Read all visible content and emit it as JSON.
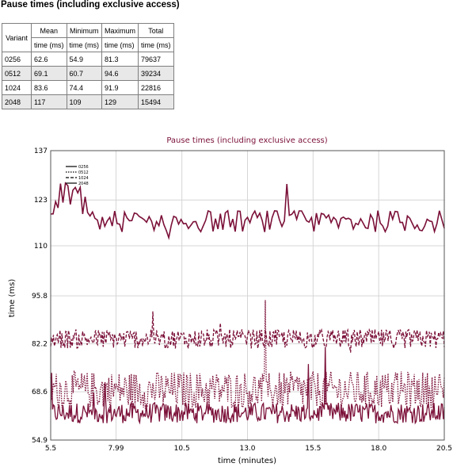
{
  "page": {
    "title": "Pause times (including exclusive access)"
  },
  "table": {
    "variant_header": "Variant",
    "columns": [
      {
        "name": "Mean",
        "unit": "time (ms)"
      },
      {
        "name": "Minimum",
        "unit": "time (ms)"
      },
      {
        "name": "Maximum",
        "unit": "time (ms)"
      },
      {
        "name": "Total",
        "unit": "time (ms)"
      }
    ],
    "rows": [
      {
        "variant": "0256",
        "mean": "62.6",
        "min": "54.9",
        "max": "81.3",
        "total": "79637"
      },
      {
        "variant": "0512",
        "mean": "69.1",
        "min": "60.7",
        "max": "94.6",
        "total": "39234"
      },
      {
        "variant": "1024",
        "mean": "83.6",
        "min": "74.4",
        "max": "91.9",
        "total": "22816"
      },
      {
        "variant": "2048",
        "mean": "117",
        "min": "109",
        "max": "129",
        "total": "15494"
      }
    ]
  },
  "chart_data": {
    "type": "line",
    "title": "Pause times (including exclusive access)",
    "xlabel": "time (minutes)",
    "ylabel": "time (ms)",
    "xlim": [
      5.5,
      20.5
    ],
    "ylim": [
      54.9,
      137
    ],
    "x_ticks": [
      "5.5",
      "7.99",
      "10.5",
      "13.0",
      "15.5",
      "18.0",
      "20.5"
    ],
    "y_ticks": [
      "54.9",
      "68.6",
      "82.2",
      "95.8",
      "110",
      "123",
      "137"
    ],
    "grid": true,
    "legend_position": "top-left",
    "line_color": "#7b1038",
    "series": [
      {
        "name": "0256",
        "style": "solid",
        "mean": 62.6,
        "min": 54.9,
        "max": 81.3
      },
      {
        "name": "0512",
        "style": "dotted",
        "mean": 69.1,
        "min": 60.7,
        "max": 94.6
      },
      {
        "name": "1024",
        "style": "dashed",
        "mean": 83.6,
        "min": 74.4,
        "max": 91.9
      },
      {
        "name": "2048",
        "style": "solid",
        "mean": 117,
        "min": 109,
        "max": 129
      }
    ]
  }
}
